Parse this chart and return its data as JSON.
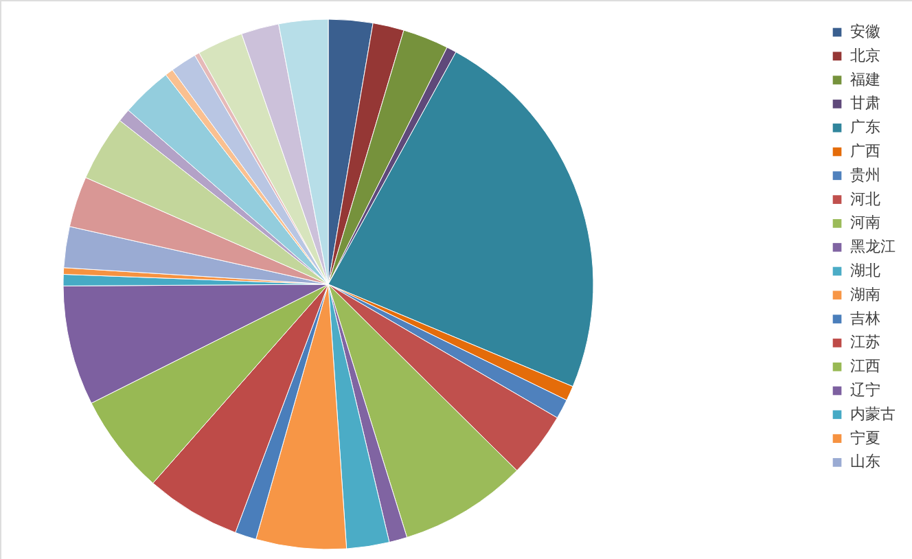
{
  "chart_data": {
    "type": "pie",
    "legend": "right",
    "categories": [
      "安徽",
      "北京",
      "福建",
      "甘肃",
      "广东",
      "广西",
      "贵州",
      "河北",
      "河南",
      "黑龙江",
      "湖北",
      "湖南",
      "吉林",
      "江苏",
      "江西",
      "辽宁",
      "内蒙古",
      "宁夏",
      "山东",
      null,
      null,
      null,
      null,
      null,
      null,
      null,
      null,
      null,
      null
    ],
    "values": [
      2.7,
      1.9,
      2.8,
      0.6,
      23.3,
      0.9,
      1.2,
      4.0,
      7.8,
      1.1,
      2.6,
      5.5,
      1.3,
      5.8,
      6.1,
      7.3,
      0.7,
      0.4,
      2.5,
      3.1,
      4.0,
      0.8,
      3.1,
      0.5,
      1.6,
      0.3,
      2.8,
      2.3,
      3.0
    ],
    "colors": [
      "#3a5f8f",
      "#953735",
      "#76923c",
      "#5f497a",
      "#31859c",
      "#e46c0a",
      "#4f81bd",
      "#c0504d",
      "#9bbb59",
      "#8064a2",
      "#4bacc6",
      "#f79646",
      "#4a7ebb",
      "#be4b48",
      "#98b954",
      "#7d60a0",
      "#46aac5",
      "#f69240",
      "#9aabd3",
      "#d99795",
      "#c3d69b",
      "#b3a2c7",
      "#93cddd",
      "#fac090",
      "#b9c6e3",
      "#e6b9b8",
      "#d7e4bd",
      "#ccc1da",
      "#b7dee8"
    ]
  }
}
